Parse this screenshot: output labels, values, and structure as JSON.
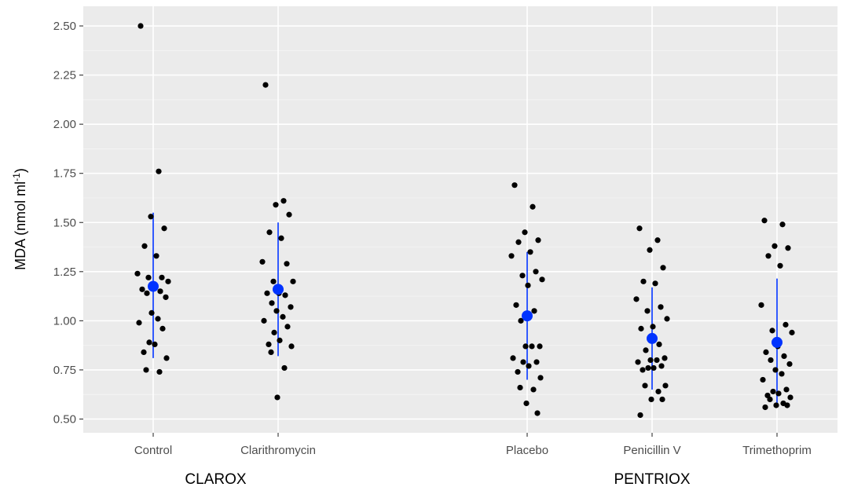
{
  "chart_data": {
    "type": "scatter",
    "ylabel": {
      "main": "MDA (nmol ml",
      "superscript": "-1",
      "closing": ")"
    },
    "ylim": [
      0.43,
      2.6
    ],
    "yticks": [
      "0.50",
      "0.75",
      "1.00",
      "1.25",
      "1.50",
      "1.75",
      "2.00",
      "2.25",
      "2.50"
    ],
    "grid": true,
    "categories": [
      "Control",
      "Clarithromycin",
      "Placebo",
      "Penicillin V",
      "Trimethoprim"
    ],
    "groups": [
      {
        "label": "CLAROX",
        "categories": [
          "Control",
          "Clarithromycin"
        ]
      },
      {
        "label": "PENTRIOX",
        "categories": [
          "Placebo",
          "Penicillin V",
          "Trimethoprim"
        ]
      }
    ],
    "colors": {
      "points": "#000000",
      "summary": "#0033ff",
      "panel": "#ebebeb",
      "grid": "#ffffff"
    },
    "summary": [
      {
        "category": "Control",
        "mean": 1.175,
        "low": 0.81,
        "high": 1.55
      },
      {
        "category": "Clarithromycin",
        "mean": 1.16,
        "low": 0.82,
        "high": 1.5
      },
      {
        "category": "Placebo",
        "mean": 1.025,
        "low": 0.7,
        "high": 1.35
      },
      {
        "category": "Penicillin V",
        "mean": 0.91,
        "low": 0.65,
        "high": 1.17
      },
      {
        "category": "Trimethoprim",
        "mean": 0.89,
        "low": 0.57,
        "high": 1.215
      }
    ],
    "points": [
      {
        "category": "Control",
        "values": [
          2.5,
          1.76,
          1.53,
          1.47,
          1.38,
          1.33,
          1.24,
          1.22,
          1.22,
          1.2,
          1.17,
          1.16,
          1.15,
          1.14,
          1.12,
          1.04,
          1.01,
          0.99,
          0.96,
          0.89,
          0.88,
          0.84,
          0.81,
          0.75,
          0.74
        ]
      },
      {
        "category": "Clarithromycin",
        "values": [
          2.2,
          1.61,
          1.59,
          1.54,
          1.45,
          1.42,
          1.3,
          1.29,
          1.2,
          1.2,
          1.14,
          1.14,
          1.13,
          1.09,
          1.07,
          1.05,
          1.02,
          1.0,
          0.97,
          0.94,
          0.9,
          0.88,
          0.87,
          0.84,
          0.76,
          0.61
        ]
      },
      {
        "category": "Placebo",
        "values": [
          1.69,
          1.58,
          1.45,
          1.41,
          1.4,
          1.35,
          1.33,
          1.25,
          1.23,
          1.21,
          1.18,
          1.08,
          1.05,
          1.0,
          0.87,
          0.87,
          0.87,
          0.81,
          0.79,
          0.79,
          0.77,
          0.74,
          0.71,
          0.66,
          0.65,
          0.58,
          0.53
        ]
      },
      {
        "category": "Penicillin V",
        "values": [
          1.47,
          1.41,
          1.36,
          1.27,
          1.2,
          1.19,
          1.11,
          1.07,
          1.05,
          1.01,
          0.97,
          0.96,
          0.88,
          0.85,
          0.81,
          0.8,
          0.8,
          0.79,
          0.77,
          0.76,
          0.76,
          0.75,
          0.67,
          0.67,
          0.64,
          0.6,
          0.6,
          0.52
        ]
      },
      {
        "category": "Trimethoprim",
        "values": [
          1.51,
          1.49,
          1.38,
          1.37,
          1.33,
          1.28,
          1.08,
          0.98,
          0.95,
          0.94,
          0.87,
          0.84,
          0.82,
          0.8,
          0.78,
          0.75,
          0.73,
          0.7,
          0.65,
          0.64,
          0.63,
          0.62,
          0.61,
          0.6,
          0.58,
          0.57,
          0.57,
          0.56
        ]
      }
    ]
  }
}
